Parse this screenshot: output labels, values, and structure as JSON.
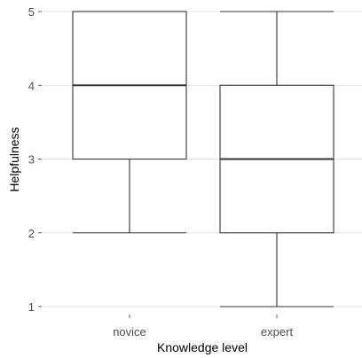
{
  "chart_data": {
    "type": "boxplot",
    "title": "",
    "xlabel": "Knowledge level",
    "ylabel": "Helpfulness",
    "categories": [
      "novice",
      "expert"
    ],
    "boxes": [
      {
        "category": "novice",
        "whisker_low": 2,
        "q1": 3,
        "median": 4,
        "q3": 5,
        "whisker_high": 5
      },
      {
        "category": "expert",
        "whisker_low": 1,
        "q1": 2,
        "median": 3,
        "q3": 4,
        "whisker_high": 5
      }
    ],
    "ylim": [
      0.8,
      5.05
    ],
    "yticks": [
      1,
      2,
      3,
      4,
      5
    ],
    "grid": true,
    "colors": {
      "box_fill": "#ffffff",
      "box_stroke": "#333333",
      "grid": "#d9d9d9",
      "tick_text": "#4d4d4d"
    }
  }
}
